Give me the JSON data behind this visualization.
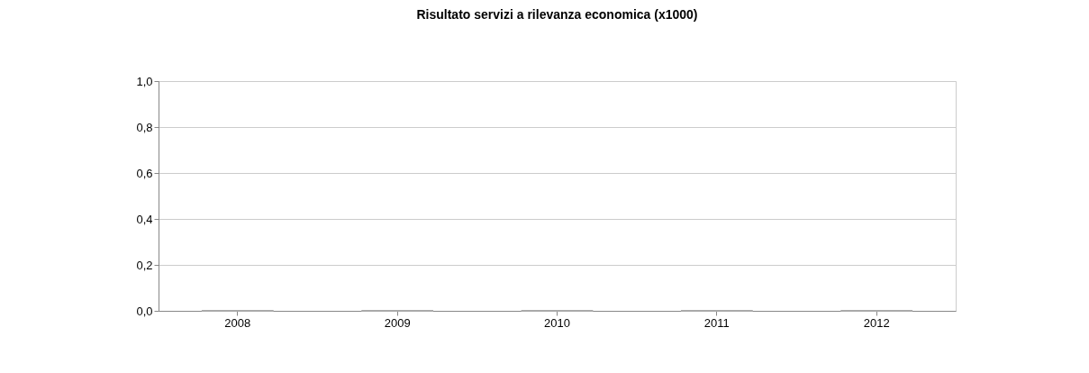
{
  "chart_data": {
    "type": "bar",
    "title": "Risultato servizi a rilevanza economica (x1000)",
    "categories": [
      "2008",
      "2009",
      "2010",
      "2011",
      "2012"
    ],
    "values": [
      0,
      0,
      0,
      0,
      0
    ],
    "color": "#aaaaaa",
    "ylim": [
      0,
      1
    ],
    "yticks": [
      {
        "value": 0,
        "label": "0,0"
      },
      {
        "value": 0.2,
        "label": "0,2"
      },
      {
        "value": 0.4,
        "label": "0,4"
      },
      {
        "value": 0.6,
        "label": "0,6"
      },
      {
        "value": 0.8,
        "label": "0,8"
      },
      {
        "value": 1,
        "label": "1,0"
      }
    ],
    "grid": "y"
  }
}
